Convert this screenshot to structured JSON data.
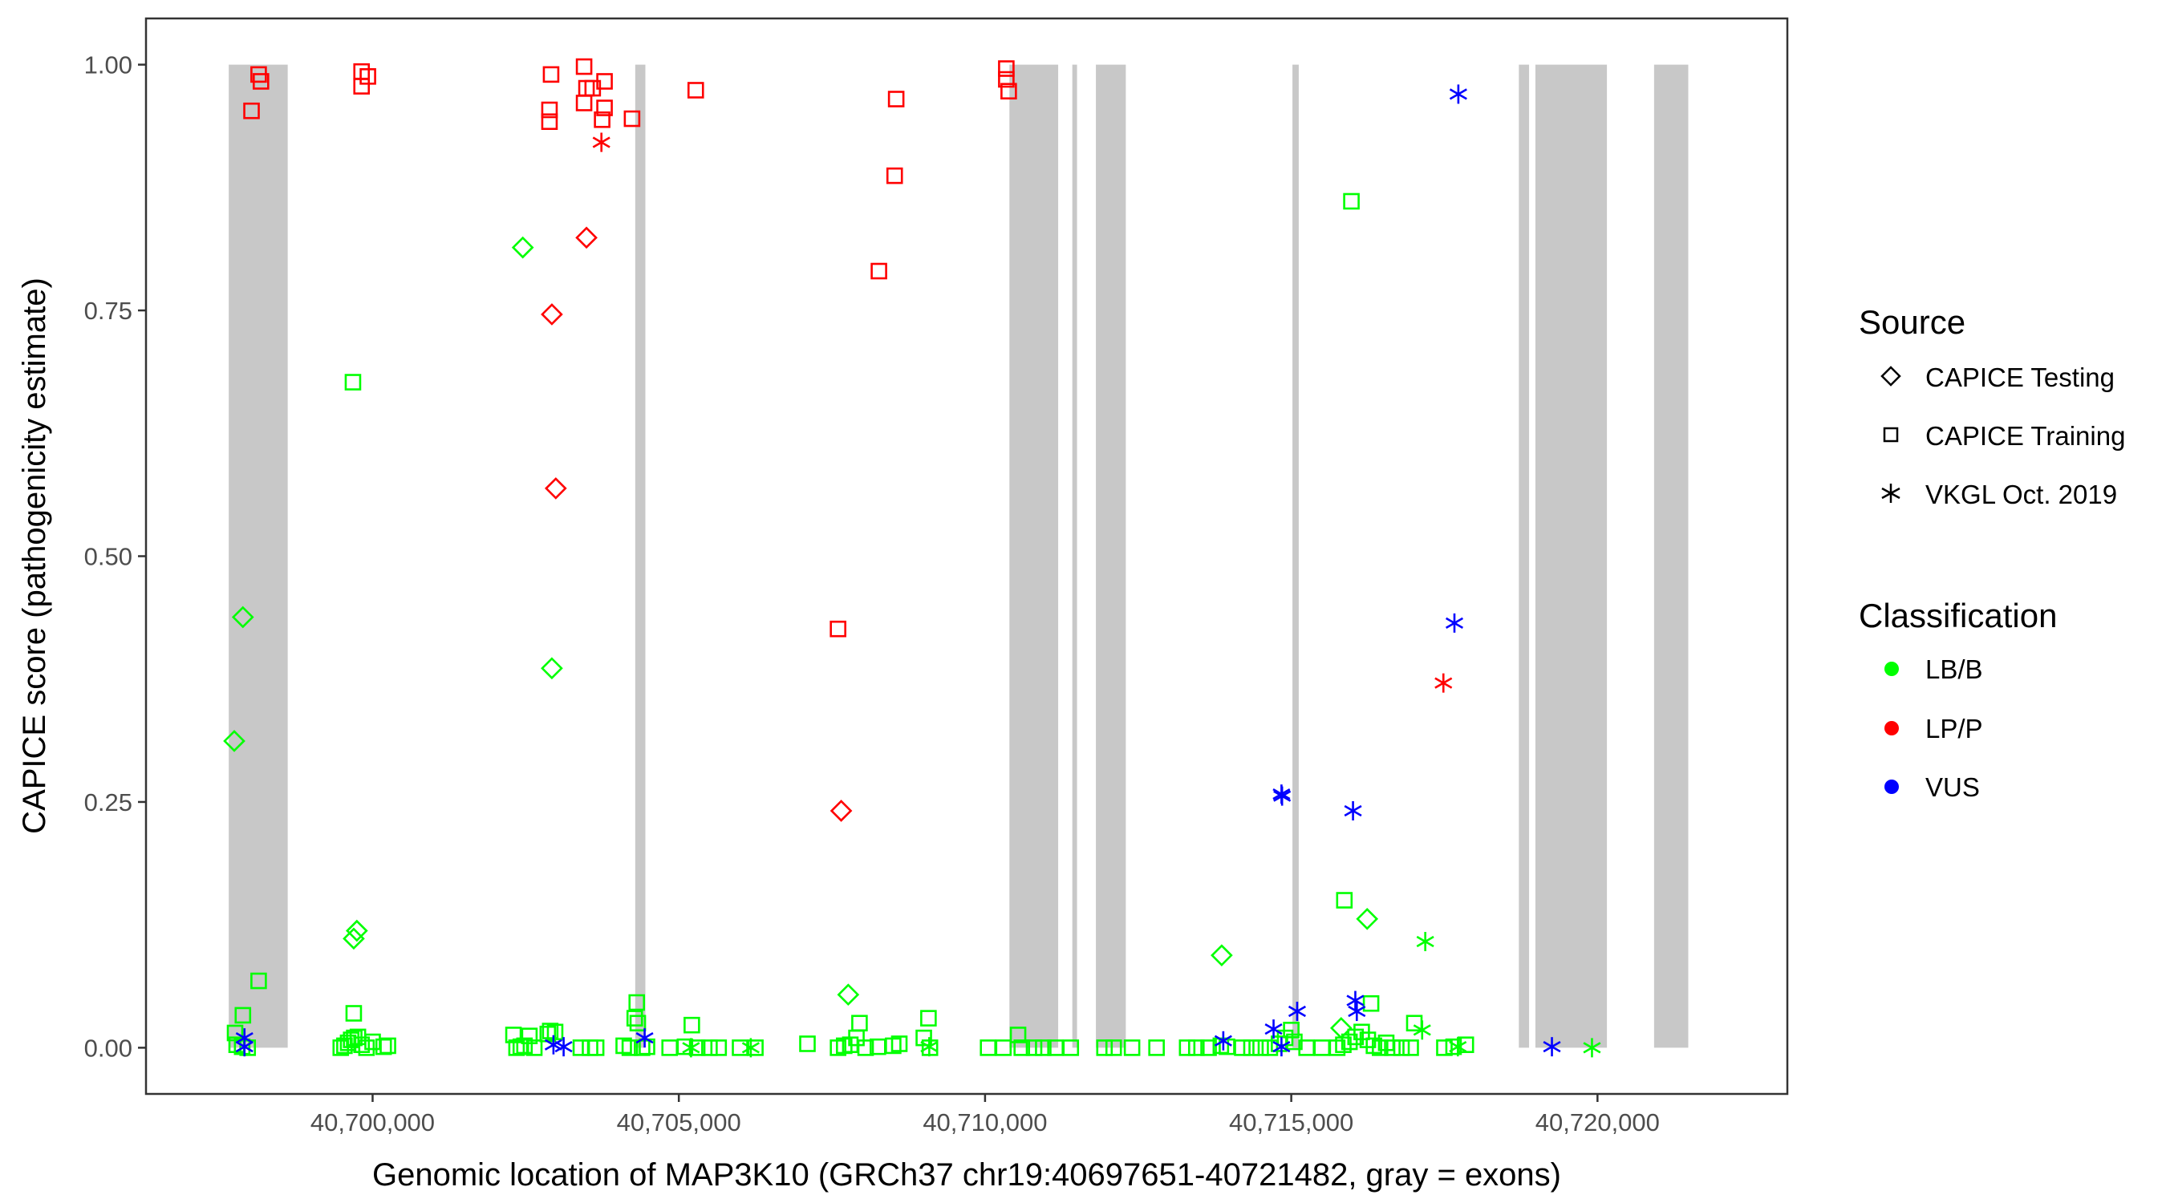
{
  "chart_data": {
    "type": "scatter",
    "title": "",
    "xlabel": "Genomic location of MAP3K10 (GRCh37 chr19:40697651-40721482, gray = exons)",
    "ylabel": "CAPICE score (pathogenicity estimate)",
    "xlim": [
      40696300,
      40723100
    ],
    "ylim": [
      -0.047,
      1.047
    ],
    "x_ticks": [
      40700000,
      40705000,
      40710000,
      40715000,
      40720000
    ],
    "x_tick_labels": [
      "40,700,000",
      "40,705,000",
      "40,710,000",
      "40,715,000",
      "40,720,000"
    ],
    "y_ticks": [
      0,
      0.25,
      0.5,
      0.75,
      1.0
    ],
    "y_tick_labels": [
      "0.00",
      "0.25",
      "0.50",
      "0.75",
      "1.00"
    ],
    "grid": false,
    "exon_color": "#c8c8c8",
    "exons": [
      [
        40697651,
        40698614
      ],
      [
        40704288,
        40704454
      ],
      [
        40710398,
        40711194
      ],
      [
        40711425,
        40711502
      ],
      [
        40711810,
        40712298
      ],
      [
        40715019,
        40715122
      ],
      [
        40718716,
        40718883
      ],
      [
        40718986,
        40720154
      ],
      [
        40720924,
        40721482
      ]
    ],
    "legend": {
      "placement": "right",
      "source_title": "Source",
      "source_items": [
        {
          "label": "CAPICE Testing",
          "shape": "diamond"
        },
        {
          "label": "CAPICE Training",
          "shape": "square"
        },
        {
          "label": "VKGL Oct. 2019",
          "shape": "asterisk"
        }
      ],
      "class_title": "Classification",
      "class_items": [
        {
          "label": "LB/B",
          "color": "#00ff00"
        },
        {
          "label": "LP/P",
          "color": "#ff0000"
        },
        {
          "label": "VUS",
          "color": "#0000ff"
        }
      ]
    },
    "series": [
      {
        "name": "CAPICE Training / LP/P",
        "shape": "square",
        "color": "#ff0000",
        "points": [
          [
            40698139,
            0.99
          ],
          [
            40698177,
            0.983
          ],
          [
            40698023,
            0.953
          ],
          [
            40699820,
            0.993
          ],
          [
            40699923,
            0.988
          ],
          [
            40699820,
            0.978
          ],
          [
            40702914,
            0.99
          ],
          [
            40702888,
            0.954
          ],
          [
            40702888,
            0.942
          ],
          [
            40703453,
            0.998
          ],
          [
            40703492,
            0.976
          ],
          [
            40703594,
            0.976
          ],
          [
            40703787,
            0.983
          ],
          [
            40703453,
            0.961
          ],
          [
            40703787,
            0.956
          ],
          [
            40703748,
            0.944
          ],
          [
            40704236,
            0.945
          ],
          [
            40705276,
            0.974
          ],
          [
            40708549,
            0.965
          ],
          [
            40708524,
            0.887
          ],
          [
            40708267,
            0.79
          ],
          [
            40707600,
            0.426
          ],
          [
            40710347,
            0.996
          ],
          [
            40710347,
            0.985
          ],
          [
            40710386,
            0.973
          ]
        ]
      },
      {
        "name": "CAPICE Testing / LP/P",
        "shape": "diamond",
        "color": "#ff0000",
        "points": [
          [
            40703492,
            0.824
          ],
          [
            40702927,
            0.746
          ],
          [
            40702991,
            0.569
          ],
          [
            40707651,
            0.241
          ]
        ]
      },
      {
        "name": "VKGL Oct. 2019 / LP/P",
        "shape": "asterisk",
        "color": "#ff0000",
        "points": [
          [
            40703736,
            0.921
          ],
          [
            40717484,
            0.371
          ]
        ]
      },
      {
        "name": "CAPICE Testing / LB/B",
        "shape": "diamond",
        "color": "#00ff00",
        "points": [
          [
            40697882,
            0.438
          ],
          [
            40697741,
            0.312
          ],
          [
            40699743,
            0.119
          ],
          [
            40699692,
            0.111
          ],
          [
            40702452,
            0.814
          ],
          [
            40702927,
            0.386
          ],
          [
            40707766,
            0.054
          ],
          [
            40713864,
            0.094
          ],
          [
            40716239,
            0.131
          ],
          [
            40715815,
            0.02
          ]
        ]
      },
      {
        "name": "CAPICE Training / LB/B",
        "shape": "square",
        "color": "#00ff00",
        "points": [
          [
            40698139,
            0.068
          ],
          [
            40697882,
            0.033
          ],
          [
            40697754,
            0.015
          ],
          [
            40697780,
            0.003
          ],
          [
            40697870,
            0.001
          ],
          [
            40697960,
            0.0
          ],
          [
            40699679,
            0.677
          ],
          [
            40699692,
            0.035
          ],
          [
            40699480,
            0.0
          ],
          [
            40699540,
            0.002
          ],
          [
            40699600,
            0.005
          ],
          [
            40699650,
            0.008
          ],
          [
            40699700,
            0.01
          ],
          [
            40699760,
            0.011
          ],
          [
            40699820,
            0.003
          ],
          [
            40699900,
            0.0
          ],
          [
            40700000,
            0.006
          ],
          [
            40700180,
            0.001
          ],
          [
            40700250,
            0.002
          ],
          [
            40702300,
            0.013
          ],
          [
            40702350,
            0.0
          ],
          [
            40702420,
            0.001
          ],
          [
            40702480,
            0.002
          ],
          [
            40702560,
            0.012
          ],
          [
            40702640,
            0.0
          ],
          [
            40702860,
            0.014
          ],
          [
            40702900,
            0.017
          ],
          [
            40702980,
            0.016
          ],
          [
            40703400,
            0.0
          ],
          [
            40703550,
            0.0
          ],
          [
            40703650,
            0.0
          ],
          [
            40704100,
            0.002
          ],
          [
            40704200,
            0.0
          ],
          [
            40704313,
            0.046
          ],
          [
            40704280,
            0.03
          ],
          [
            40704330,
            0.025
          ],
          [
            40704400,
            0.0
          ],
          [
            40704480,
            0.001
          ],
          [
            40704850,
            0.0
          ],
          [
            40705212,
            0.023
          ],
          [
            40705100,
            0.001
          ],
          [
            40705300,
            0.0
          ],
          [
            40705500,
            0.0
          ],
          [
            40705650,
            0.0
          ],
          [
            40706000,
            0.0
          ],
          [
            40706250,
            0.0
          ],
          [
            40707100,
            0.004
          ],
          [
            40707600,
            0.0
          ],
          [
            40707700,
            0.002
          ],
          [
            40707800,
            0.003
          ],
          [
            40707900,
            0.01
          ],
          [
            40707950,
            0.025
          ],
          [
            40708050,
            0.0
          ],
          [
            40708250,
            0.001
          ],
          [
            40708500,
            0.002
          ],
          [
            40708600,
            0.004
          ],
          [
            40709000,
            0.01
          ],
          [
            40709076,
            0.03
          ],
          [
            40709100,
            0.0
          ],
          [
            40710050,
            0.0
          ],
          [
            40710300,
            0.0
          ],
          [
            40710539,
            0.013
          ],
          [
            40710600,
            0.0
          ],
          [
            40710800,
            0.0
          ],
          [
            40710950,
            0.0
          ],
          [
            40711150,
            0.0
          ],
          [
            40711400,
            0.0
          ],
          [
            40711950,
            0.0
          ],
          [
            40712100,
            0.0
          ],
          [
            40712400,
            0.0
          ],
          [
            40712800,
            0.0
          ],
          [
            40713300,
            0.0
          ],
          [
            40713450,
            0.0
          ],
          [
            40713650,
            0.0
          ],
          [
            40713850,
            0.002
          ],
          [
            40713950,
            0.001
          ],
          [
            40714200,
            0.0
          ],
          [
            40714350,
            0.0
          ],
          [
            40714500,
            0.0
          ],
          [
            40714650,
            0.0
          ],
          [
            40714800,
            0.004
          ],
          [
            40714900,
            0.01
          ],
          [
            40715000,
            0.018
          ],
          [
            40715050,
            0.006
          ],
          [
            40715250,
            0.0
          ],
          [
            40715500,
            0.0
          ],
          [
            40715982,
            0.861
          ],
          [
            40715867,
            0.15
          ],
          [
            40716303,
            0.045
          ],
          [
            40717009,
            0.025
          ],
          [
            40715750,
            0.0
          ],
          [
            40715850,
            0.003
          ],
          [
            40715950,
            0.006
          ],
          [
            40716050,
            0.011
          ],
          [
            40716150,
            0.016
          ],
          [
            40716250,
            0.008
          ],
          [
            40716350,
            0.002
          ],
          [
            40716450,
            0.0
          ],
          [
            40716550,
            0.005
          ],
          [
            40716650,
            0.0
          ],
          [
            40716800,
            0.0
          ],
          [
            40716950,
            0.0
          ],
          [
            40717500,
            0.0
          ],
          [
            40717650,
            0.001
          ],
          [
            40717850,
            0.003
          ]
        ]
      },
      {
        "name": "VKGL Oct. 2019 / LB/B",
        "shape": "asterisk",
        "color": "#00ff00",
        "points": [
          [
            40705199,
            0.0
          ],
          [
            40706175,
            0.0
          ],
          [
            40709089,
            0.001
          ],
          [
            40717188,
            0.108
          ],
          [
            40717137,
            0.018
          ],
          [
            40717720,
            0.001
          ],
          [
            40719910,
            0.0
          ]
        ]
      },
      {
        "name": "VKGL Oct. 2019 / VUS",
        "shape": "asterisk",
        "color": "#0000ff",
        "points": [
          [
            40697908,
            0.01
          ],
          [
            40697908,
            0.001
          ],
          [
            40702953,
            0.003
          ],
          [
            40703119,
            0.001
          ],
          [
            40704442,
            0.01
          ],
          [
            40713890,
            0.007
          ],
          [
            40714840,
            0.258
          ],
          [
            40714850,
            0.256
          ],
          [
            40714711,
            0.019
          ],
          [
            40714840,
            0.001
          ],
          [
            40715096,
            0.037
          ],
          [
            40716008,
            0.241
          ],
          [
            40716046,
            0.048
          ],
          [
            40716070,
            0.037
          ],
          [
            40717664,
            0.432
          ],
          [
            40717728,
            0.97
          ],
          [
            40719256,
            0.001
          ]
        ]
      }
    ]
  }
}
